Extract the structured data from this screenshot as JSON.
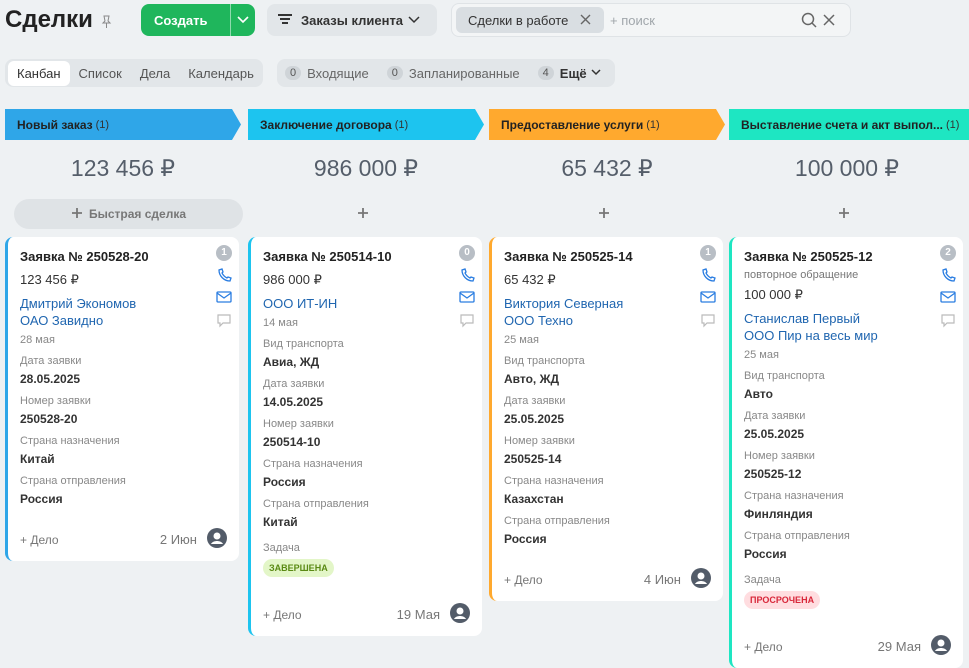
{
  "header": {
    "title": "Сделки",
    "create": "Создать",
    "filter_preset": "Заказы клиента",
    "filter_tag": "Сделки в работе",
    "search": "+ поиск"
  },
  "tabs": [
    "Канбан",
    "Список",
    "Дела",
    "Календарь"
  ],
  "counters": [
    {
      "count": 0,
      "label": "Входящие"
    },
    {
      "count": 0,
      "label": "Запланированные"
    },
    {
      "count": 4,
      "label": "Ещё"
    }
  ],
  "quick_deal": "Быстрая сделка",
  "columns": [
    {
      "name": "Новый заказ",
      "count": "(1)",
      "total": "123 456 ₽",
      "color": "#2fa6e8",
      "cards": [
        {
          "title": "Заявка № 250528-20",
          "badge": 1,
          "amount": "123 456 ₽",
          "contact": "Дмитрий Экономов",
          "company": "ОАО Завидно",
          "date": "28 мая",
          "fields": [
            {
              "label": "Дата заявки",
              "value": "28.05.2025"
            },
            {
              "label": "Номер заявки",
              "value": "250528-20"
            },
            {
              "label": "Страна назначения",
              "value": "Китай"
            },
            {
              "label": "Страна отправления",
              "value": "Россия"
            }
          ],
          "add": "+ Дело",
          "due": "2 Июн"
        }
      ]
    },
    {
      "name": "Заключение договора",
      "count": "(1)",
      "total": "986 000 ₽",
      "color": "#1dc4ef",
      "cards": [
        {
          "title": "Заявка № 250514-10",
          "badge": 0,
          "amount": "986 000 ₽",
          "company": "ООО ИТ-ИН",
          "date": "14 мая",
          "fields": [
            {
              "label": "Вид транспорта",
              "value": "Авиа, ЖД"
            },
            {
              "label": "Дата заявки",
              "value": "14.05.2025"
            },
            {
              "label": "Номер заявки",
              "value": "250514-10"
            },
            {
              "label": "Страна назначения",
              "value": "Россия"
            },
            {
              "label": "Страна отправления",
              "value": "Китай"
            }
          ],
          "task": {
            "label": "Задача",
            "status": "ЗАВЕРШЕНА",
            "kind": "done"
          },
          "add": "+ Дело",
          "due": "19 Мая"
        }
      ]
    },
    {
      "name": "Предоставление услуги",
      "count": "(1)",
      "total": "65 432 ₽",
      "color": "#ffa92e",
      "cards": [
        {
          "title": "Заявка № 250525-14",
          "badge": 1,
          "amount": "65 432 ₽",
          "contact": "Виктория Северная",
          "company": "ООО Техно",
          "date": "25 мая",
          "fields": [
            {
              "label": "Вид транспорта",
              "value": "Авто, ЖД"
            },
            {
              "label": "Дата заявки",
              "value": "25.05.2025"
            },
            {
              "label": "Номер заявки",
              "value": "250525-14"
            },
            {
              "label": "Страна назначения",
              "value": "Казахстан"
            },
            {
              "label": "Страна отправления",
              "value": "Россия"
            }
          ],
          "add": "+ Дело",
          "due": "4 Июн"
        }
      ]
    },
    {
      "name": "Выставление счета и акт выпол...",
      "count": "(1)",
      "total": "100 000 ₽",
      "color": "#1ee6c2",
      "cards": [
        {
          "title": "Заявка № 250525-12",
          "badge": 2,
          "note": "повторное обращение",
          "amount": "100 000 ₽",
          "contact": "Станислав Первый",
          "company": "ООО Пир на весь мир",
          "date": "25 мая",
          "fields": [
            {
              "label": "Вид транспорта",
              "value": "Авто"
            },
            {
              "label": "Дата заявки",
              "value": "25.05.2025"
            },
            {
              "label": "Номер заявки",
              "value": "250525-12"
            },
            {
              "label": "Страна назначения",
              "value": "Финляндия"
            },
            {
              "label": "Страна отправления",
              "value": "Россия"
            }
          ],
          "task": {
            "label": "Задача",
            "status": "ПРОСРОЧЕНА",
            "kind": "late"
          },
          "add": "+ Дело",
          "due": "29 Мая"
        }
      ]
    }
  ]
}
